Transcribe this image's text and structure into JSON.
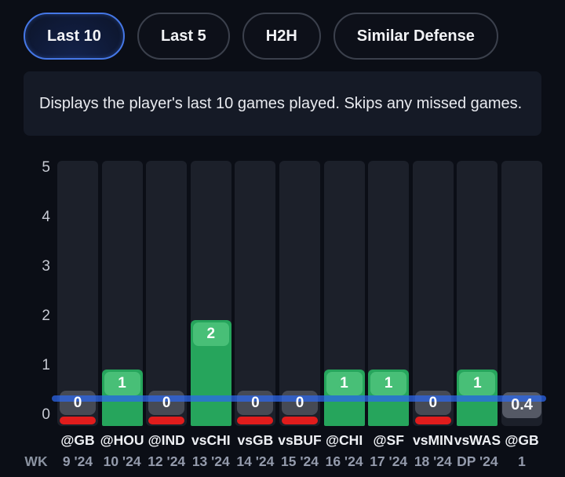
{
  "tabs": {
    "items": [
      {
        "label": "Last 10",
        "selected": true
      },
      {
        "label": "Last 5",
        "selected": false
      },
      {
        "label": "H2H",
        "selected": false
      },
      {
        "label": "Similar Defense",
        "selected": false
      }
    ]
  },
  "description": {
    "text": "Displays the player's last 10 games played. Skips any missed games."
  },
  "chart_data": {
    "type": "bar",
    "title": "",
    "xlabel": "",
    "ylabel": "",
    "ylim": [
      0,
      5
    ],
    "yticks": [
      0,
      1,
      2,
      3,
      4,
      5
    ],
    "grid": false,
    "reference_line_value": 0.4,
    "projection_label": "0.4",
    "week_row_header": "WK",
    "categories": [
      "@GB",
      "@HOU",
      "@IND",
      "vsCHI",
      "vsGB",
      "vsBUF",
      "@CHI",
      "@SF",
      "vsMIN",
      "vsWAS",
      "@GB"
    ],
    "weeks": [
      "9 '24",
      "10 '24",
      "12 '24",
      "13 '24",
      "14 '24",
      "15 '24",
      "16 '24",
      "17 '24",
      "18 '24",
      "DP '24",
      "1"
    ],
    "values": [
      0,
      1,
      0,
      2,
      0,
      0,
      1,
      1,
      0,
      1,
      null
    ],
    "colors": {
      "bar_green": "#26a55c",
      "bar_green_label": "#48bf77",
      "zero_pill_gray": "#464a55",
      "missed_red": "#e01c1c",
      "reference_blue": "#2d68ef",
      "selected_tab_blue": "#4577e6",
      "track": "#1c202a",
      "background": "#0b0e16"
    }
  }
}
